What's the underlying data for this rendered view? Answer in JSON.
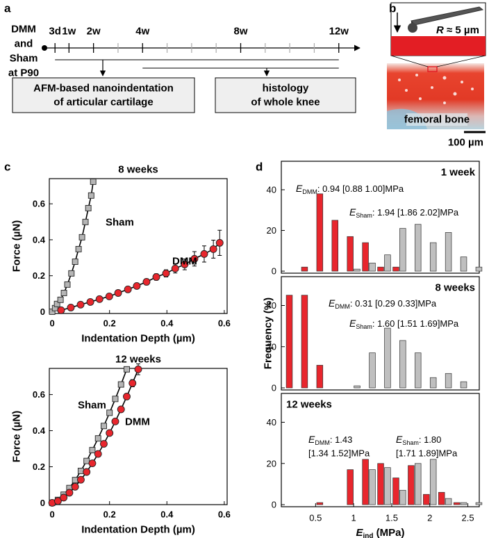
{
  "figure_labels": [
    "a",
    "b",
    "c",
    "d"
  ],
  "panel_a": {
    "start_label": [
      "DMM",
      "and",
      "Sham",
      "at P90"
    ],
    "timeline": {
      "xlim": [
        0,
        12.8
      ],
      "ticks": [
        {
          "value": 0.43,
          "label": "3d"
        },
        {
          "value": 1,
          "label": "1w"
        },
        {
          "value": 2,
          "label": "2w"
        },
        {
          "value": 4,
          "label": "4w"
        },
        {
          "value": 8,
          "label": "8w"
        },
        {
          "value": 12,
          "label": "12w"
        }
      ],
      "minor_ticks": [
        3,
        5,
        6,
        7,
        9,
        10,
        11
      ]
    },
    "boxes": [
      [
        "AFM-based nanoindentation",
        "of articular cartilage"
      ],
      [
        "histology",
        "of whole knee"
      ]
    ]
  },
  "panel_b": {
    "tip_radius": {
      "symbol": "R",
      "text": " ≈ 5 µm"
    },
    "bone_label": "femoral bone",
    "scale_bar": "100 µm"
  },
  "chart_data": [
    {
      "type": "scatter",
      "title": "8 weeks",
      "x_label": "Indentation Depth (µm)",
      "y_label": "Force (µN)",
      "xlim": [
        -0.01,
        0.61
      ],
      "ylim": [
        -0.01,
        0.74
      ],
      "xticks": [
        0,
        0.2,
        0.4,
        0.6
      ],
      "yticks": [
        0,
        0.2,
        0.4,
        0.6
      ],
      "series": [
        {
          "name": "Sham",
          "marker": "square",
          "color": "#b5b5b5",
          "x": [
            0,
            0.01,
            0.017,
            0.029,
            0.041,
            0.053,
            0.067,
            0.08,
            0.092,
            0.104,
            0.116,
            0.126,
            0.136,
            0.143
          ],
          "values": [
            0,
            0.02,
            0.043,
            0.066,
            0.104,
            0.151,
            0.213,
            0.278,
            0.348,
            0.414,
            0.499,
            0.576,
            0.646,
            0.723
          ]
        },
        {
          "name": "DMM",
          "marker": "circle",
          "color": "#e8262d",
          "x": [
            0.031,
            0.065,
            0.099,
            0.133,
            0.165,
            0.199,
            0.23,
            0.264,
            0.295,
            0.329,
            0.363,
            0.397,
            0.429,
            0.462,
            0.496,
            0.53,
            0.562,
            0.584
          ],
          "values": [
            0.008,
            0.023,
            0.039,
            0.054,
            0.07,
            0.085,
            0.104,
            0.124,
            0.143,
            0.166,
            0.193,
            0.213,
            0.24,
            0.263,
            0.294,
            0.321,
            0.348,
            0.383
          ],
          "errors": [
            0.005,
            0.005,
            0.006,
            0.007,
            0.008,
            0.009,
            0.01,
            0.012,
            0.014,
            0.016,
            0.018,
            0.02,
            0.025,
            0.03,
            0.04,
            0.045,
            0.05,
            0.07
          ]
        }
      ]
    },
    {
      "type": "scatter",
      "title": "12 weeks",
      "x_label": "Indentation Depth (µm)",
      "y_label": "Force (µN)",
      "xlim": [
        -0.01,
        0.61
      ],
      "ylim": [
        -0.01,
        0.745
      ],
      "xticks": [
        0,
        0.2,
        0.4,
        0.6
      ],
      "yticks": [
        0,
        0.2,
        0.4,
        0.6
      ],
      "series": [
        {
          "name": "Sham",
          "marker": "square",
          "color": "#b5b5b5",
          "x": [
            0,
            0.02,
            0.04,
            0.06,
            0.08,
            0.1,
            0.12,
            0.14,
            0.16,
            0.18,
            0.2,
            0.22,
            0.24,
            0.26
          ],
          "values": [
            0,
            0.016,
            0.045,
            0.082,
            0.126,
            0.177,
            0.232,
            0.292,
            0.357,
            0.426,
            0.499,
            0.576,
            0.656,
            0.74
          ]
        },
        {
          "name": "DMM",
          "marker": "circle",
          "color": "#e8262d",
          "x": [
            0,
            0.02,
            0.04,
            0.06,
            0.08,
            0.1,
            0.12,
            0.14,
            0.16,
            0.18,
            0.2,
            0.22,
            0.24,
            0.26,
            0.28,
            0.3
          ],
          "values": [
            0,
            0.01,
            0.029,
            0.056,
            0.089,
            0.128,
            0.171,
            0.219,
            0.271,
            0.327,
            0.387,
            0.451,
            0.518,
            0.589,
            0.663,
            0.74
          ],
          "errors": [
            0.003,
            0.003,
            0.004,
            0.004,
            0.005,
            0.005,
            0.006,
            0.006,
            0.007,
            0.008,
            0.009,
            0.01,
            0.012,
            0.015,
            0.02,
            0.03
          ]
        }
      ]
    },
    {
      "type": "histogram",
      "title": "1 week",
      "xlim": [
        0.05,
        2.65
      ],
      "ylim": [
        -1,
        54
      ],
      "yticks": [
        0,
        20,
        40
      ],
      "x": [
        0.2,
        0.4,
        0.6,
        0.8,
        1.0,
        1.2,
        1.4,
        1.6,
        1.8,
        2.0,
        2.2,
        2.4,
        2.6
      ],
      "series": [
        {
          "color": "#e8262d",
          "values": [
            0,
            2,
            38,
            25,
            17,
            14,
            2,
            2,
            0,
            0,
            0,
            0,
            0
          ]
        },
        {
          "color": "#bfbfbf",
          "values": [
            0,
            0,
            0,
            0,
            1,
            4,
            8,
            21,
            23,
            14,
            19,
            7,
            2
          ]
        }
      ],
      "annotations": [
        {
          "symbol": "E",
          "sub": "DMM",
          "text": ": 0.94 [0.88 1.00]MPa"
        },
        {
          "symbol": "E",
          "sub": "Sham",
          "text": ": 1.94 [1.86 2.02]MPa"
        }
      ]
    },
    {
      "type": "histogram",
      "title": "8 weeks",
      "y_label": "Frequency (%)",
      "xlim": [
        0.05,
        2.65
      ],
      "ylim": [
        -1,
        54
      ],
      "yticks": [
        0,
        20,
        40
      ],
      "x": [
        0.2,
        0.4,
        0.6,
        0.8,
        1.0,
        1.2,
        1.4,
        1.6,
        1.8,
        2.0,
        2.2,
        2.4,
        2.6
      ],
      "series": [
        {
          "color": "#e8262d",
          "values": [
            45,
            45,
            11,
            0,
            0,
            0,
            0,
            0,
            0,
            0,
            0,
            0,
            0
          ]
        },
        {
          "color": "#bfbfbf",
          "values": [
            0,
            0,
            0,
            0,
            1,
            17,
            29,
            23,
            17,
            5,
            7,
            3,
            0
          ]
        }
      ],
      "annotations": [
        {
          "symbol": "E",
          "sub": "DMM",
          "text": ": 0.31 [0.29 0.33]MPa"
        },
        {
          "symbol": "E",
          "sub": "Sham",
          "text": ": 1.60 [1.51 1.69]MPa"
        }
      ]
    },
    {
      "type": "histogram",
      "title": "12 weeks",
      "x_label": {
        "symbol": "E",
        "sub": "ind",
        "text": " (MPa)"
      },
      "xlim": [
        0.05,
        2.65
      ],
      "ylim": [
        -1,
        54
      ],
      "yticks": [
        0,
        20,
        40
      ],
      "xticks": [
        0.5,
        1,
        1.5,
        2,
        2.5
      ],
      "x": [
        0.2,
        0.4,
        0.6,
        0.8,
        1.0,
        1.2,
        1.4,
        1.6,
        1.8,
        2.0,
        2.2,
        2.4,
        2.6
      ],
      "series": [
        {
          "color": "#e8262d",
          "values": [
            0,
            0,
            1,
            0,
            17,
            22,
            20,
            13,
            19,
            5,
            6,
            1,
            0
          ]
        },
        {
          "color": "#bfbfbf",
          "values": [
            0,
            0,
            0,
            0,
            0,
            17,
            18,
            7,
            20,
            22,
            3,
            1,
            1
          ]
        }
      ],
      "annotations": [
        {
          "symbol": "E",
          "sub": "DMM",
          "text": ": 1.43",
          "line2": "[1.34 1.52]MPa"
        },
        {
          "symbol": "E",
          "sub": "Sham",
          "text": ": 1.80",
          "line2": "[1.71 1.89]MPa"
        }
      ]
    }
  ]
}
